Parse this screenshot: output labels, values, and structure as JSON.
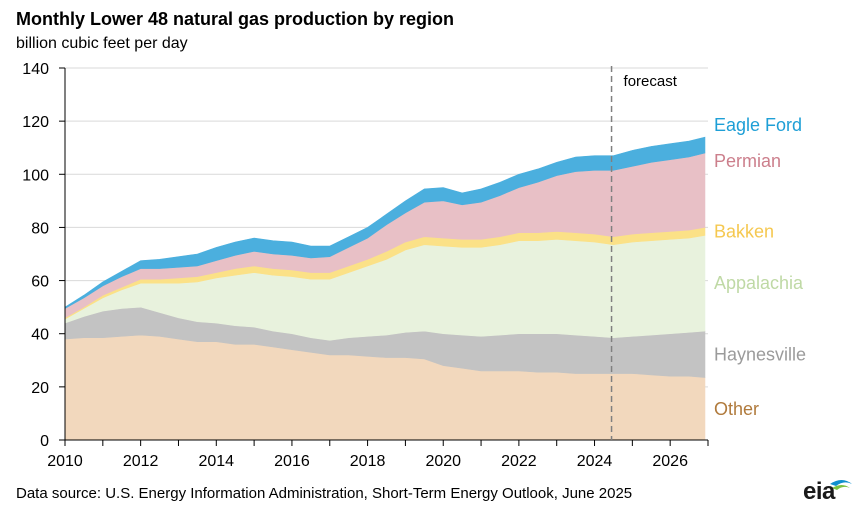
{
  "chart_data": {
    "type": "area",
    "title": "Monthly Lower 48 natural gas production by region",
    "ylabel": "billion  cubic  feet per day",
    "xlabel": "",
    "xlim": [
      2010,
      2027
    ],
    "ylim": [
      0,
      140
    ],
    "x_ticks": [
      "2010",
      "2012",
      "2014",
      "2016",
      "2018",
      "2020",
      "2022",
      "2024",
      "2026"
    ],
    "x_tick_values": [
      2010,
      2012,
      2014,
      2016,
      2018,
      2020,
      2022,
      2024,
      2026
    ],
    "y_ticks": [
      "0",
      "20",
      "40",
      "60",
      "80",
      "100",
      "120",
      "140"
    ],
    "y_tick_values": [
      0,
      20,
      40,
      60,
      80,
      100,
      120,
      140
    ],
    "forecast_start": 2024.45,
    "forecast_label": "forecast",
    "source": "Data source: U.S. Energy Information Administration,  Short-Term Energy Outlook, June 2025",
    "logo_text": "eia",
    "x": [
      2010,
      2010.5,
      2011,
      2011.5,
      2012,
      2012.5,
      2013,
      2013.5,
      2014,
      2014.5,
      2015,
      2015.5,
      2016,
      2016.5,
      2017,
      2017.5,
      2018,
      2018.5,
      2019,
      2019.5,
      2020,
      2020.5,
      2021,
      2021.5,
      2022,
      2022.5,
      2023,
      2023.5,
      2024,
      2024.5,
      2025,
      2025.5,
      2026,
      2026.5,
      2026.92
    ],
    "series": [
      {
        "name": "Other",
        "color": "#f2d8bd",
        "label_color": "#b07a3c",
        "values": [
          38,
          38.5,
          38.5,
          39,
          39.5,
          39,
          38,
          37,
          37,
          36,
          36,
          35,
          34,
          33,
          32,
          32,
          31.5,
          31,
          31,
          30.5,
          28,
          27,
          26,
          26,
          26,
          25.5,
          25.5,
          25,
          25,
          25,
          25,
          24.5,
          24,
          24,
          23.5
        ]
      },
      {
        "name": "Haynesville",
        "color": "#c3c3c3",
        "label_color": "#9b9b9b",
        "values": [
          6,
          8,
          10,
          10.5,
          10.5,
          9,
          8,
          7.5,
          7,
          7,
          6.5,
          6,
          6,
          5.5,
          5.5,
          6.5,
          7.5,
          8.5,
          9.5,
          10.5,
          12,
          12.5,
          13,
          13.5,
          14,
          14.5,
          14.5,
          14.5,
          14,
          13.5,
          14,
          15,
          16,
          16.5,
          17.5
        ]
      },
      {
        "name": "Appalachia",
        "color": "#e8f2dd",
        "label_color": "#bfd9a5",
        "values": [
          1.5,
          3,
          5,
          7,
          9,
          11,
          13,
          15,
          17,
          19,
          20.5,
          21,
          21.5,
          22,
          23,
          24.5,
          26.5,
          28.5,
          31,
          32.5,
          33,
          33,
          33.5,
          34,
          35,
          35,
          35.5,
          35.5,
          35.5,
          35,
          35.5,
          35.5,
          35.5,
          35.5,
          36
        ]
      },
      {
        "name": "Bakken",
        "color": "#fbe187",
        "label_color": "#f5c850",
        "values": [
          0.5,
          0.5,
          1,
          1,
          1.5,
          1.5,
          2,
          2,
          2,
          2.5,
          2.5,
          2.5,
          2.5,
          2.5,
          2.5,
          2.5,
          2.5,
          3,
          3,
          3,
          3,
          3,
          3,
          3,
          3,
          3,
          3,
          3,
          3,
          3,
          3,
          3,
          3,
          3,
          3
        ]
      },
      {
        "name": "Permian",
        "color": "#e8c0c6",
        "label_color": "#cc7f8c",
        "values": [
          3.5,
          3.5,
          3.5,
          4,
          4,
          4,
          4,
          4,
          4.5,
          5,
          5.5,
          5.5,
          5.5,
          5.5,
          6,
          7,
          8,
          10,
          11,
          13,
          14,
          13,
          14,
          15.5,
          17,
          19,
          21,
          23,
          24,
          25,
          25.5,
          26.5,
          27,
          27.5,
          28
        ]
      },
      {
        "name": "Eagle Ford",
        "color": "#4bafde",
        "label_color": "#1e9fd6",
        "values": [
          0.5,
          1,
          1.5,
          2,
          3,
          3.5,
          4,
          4.5,
          5,
          5,
          5,
          5,
          5,
          4.5,
          4,
          4,
          4,
          4,
          4.5,
          5,
          5,
          4.5,
          5,
          5,
          5,
          5,
          5,
          5.5,
          5.5,
          5.5,
          6,
          6,
          6,
          6,
          6
        ]
      }
    ]
  }
}
